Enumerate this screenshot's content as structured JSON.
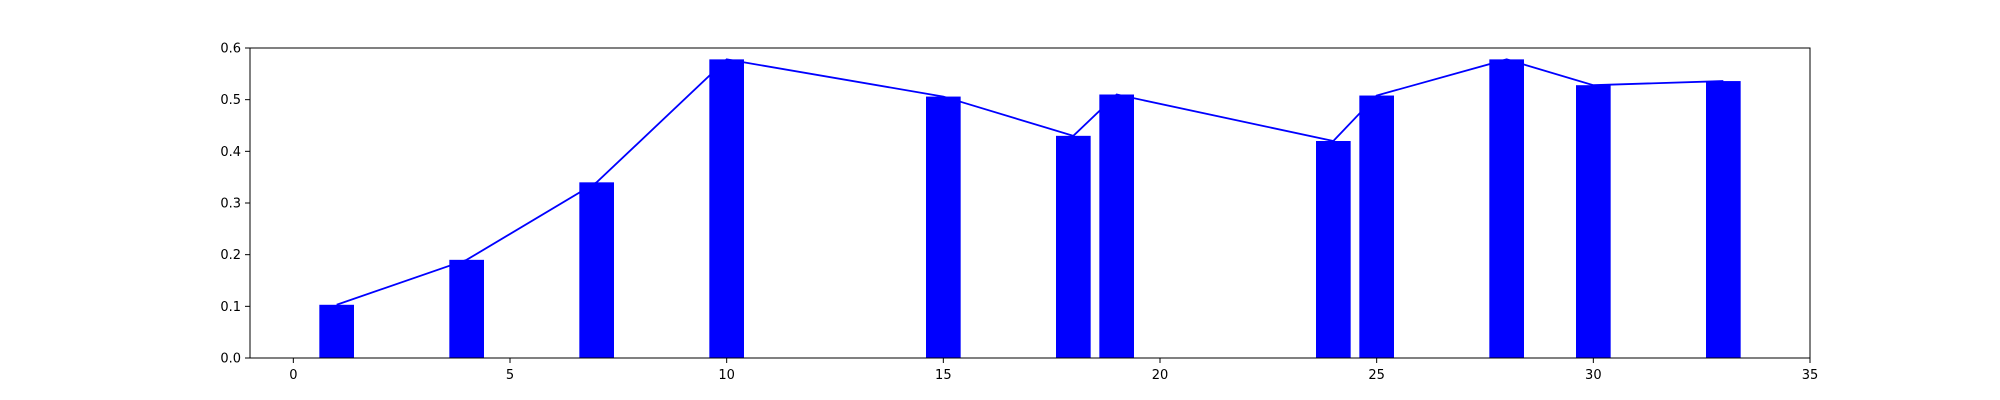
{
  "chart_data": {
    "type": "bar",
    "x": [
      1,
      4,
      7,
      10,
      15,
      18,
      19,
      24,
      25,
      28,
      30,
      33
    ],
    "values": [
      0.103,
      0.19,
      0.34,
      0.578,
      0.506,
      0.43,
      0.51,
      0.42,
      0.508,
      0.578,
      0.528,
      0.536
    ],
    "series": [
      {
        "kind": "bar",
        "color": "#0000ff",
        "values": [
          0.103,
          0.19,
          0.34,
          0.578,
          0.506,
          0.43,
          0.51,
          0.42,
          0.508,
          0.578,
          0.528,
          0.536
        ]
      },
      {
        "kind": "line",
        "color": "#0000ff",
        "values": [
          0.103,
          0.19,
          0.34,
          0.578,
          0.506,
          0.43,
          0.51,
          0.42,
          0.508,
          0.578,
          0.528,
          0.536
        ]
      }
    ],
    "bar_width": 0.8,
    "title": "",
    "xlabel": "",
    "ylabel": "",
    "xlim": [
      -1,
      35
    ],
    "ylim": [
      0,
      0.6
    ],
    "xticks": [
      "0",
      "5",
      "10",
      "15",
      "20",
      "25",
      "30",
      "35"
    ],
    "yticks": [
      "0.0",
      "0.1",
      "0.2",
      "0.3",
      "0.4",
      "0.5",
      "0.6"
    ],
    "grid": false,
    "legend": "none"
  }
}
